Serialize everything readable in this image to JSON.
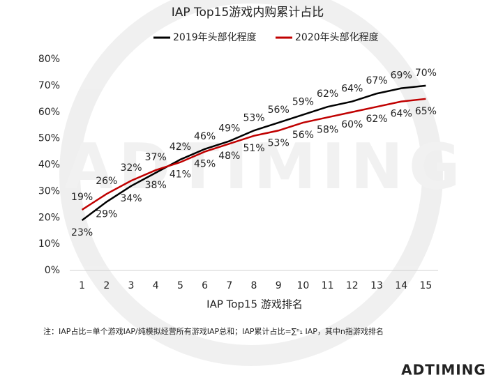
{
  "chart_data": {
    "type": "line",
    "title": "IAP Top15游戏内购累计占比",
    "x_label": "IAP Top15 游戏排名",
    "note": "注：IAP占比=单个游戏IAP/纯模拟经营所有游戏IAP总和；IAP累计占比=∑ⁿ₁ IAP，其中n指游戏排名",
    "logo": "ADTIMING",
    "x": [
      1,
      2,
      3,
      4,
      5,
      6,
      7,
      8,
      9,
      10,
      11,
      12,
      13,
      14,
      15
    ],
    "xlim": [
      0.5,
      15.5
    ],
    "xticks": [
      1,
      2,
      3,
      4,
      5,
      6,
      7,
      8,
      9,
      10,
      11,
      12,
      13,
      14,
      15
    ],
    "ylim": [
      0,
      80
    ],
    "yticks": [
      {
        "value": 0,
        "label": "0%"
      },
      {
        "value": 10,
        "label": "10%"
      },
      {
        "value": 20,
        "label": "20%"
      },
      {
        "value": 30,
        "label": "30%"
      },
      {
        "value": 40,
        "label": "40%"
      },
      {
        "value": 50,
        "label": "50%"
      },
      {
        "value": 60,
        "label": "60%"
      },
      {
        "value": 70,
        "label": "70%"
      },
      {
        "value": 80,
        "label": "80%"
      }
    ],
    "grid": false,
    "legend": "top",
    "series": [
      {
        "name": "2019年头部化程度",
        "color": "#000000",
        "values": [
          19,
          26,
          32,
          37,
          42,
          46,
          49,
          53,
          56,
          59,
          62,
          64,
          67,
          69,
          70
        ],
        "value_labels": [
          "19%",
          "26%",
          "32%",
          "37%",
          "42%",
          "46%",
          "49%",
          "53%",
          "56%",
          "59%",
          "62%",
          "64%",
          "67%",
          "69%",
          "70%"
        ]
      },
      {
        "name": "2020年头部化程度",
        "color": "#c00000",
        "values": [
          23,
          29,
          34,
          38,
          41,
          45,
          48,
          51,
          53,
          56,
          58,
          60,
          62,
          64,
          65
        ],
        "value_labels": [
          "23%",
          "29%",
          "34%",
          "38%",
          "41%",
          "45%",
          "48%",
          "51%",
          "53%",
          "56%",
          "58%",
          "60%",
          "62%",
          "64%",
          "65%"
        ]
      }
    ]
  }
}
